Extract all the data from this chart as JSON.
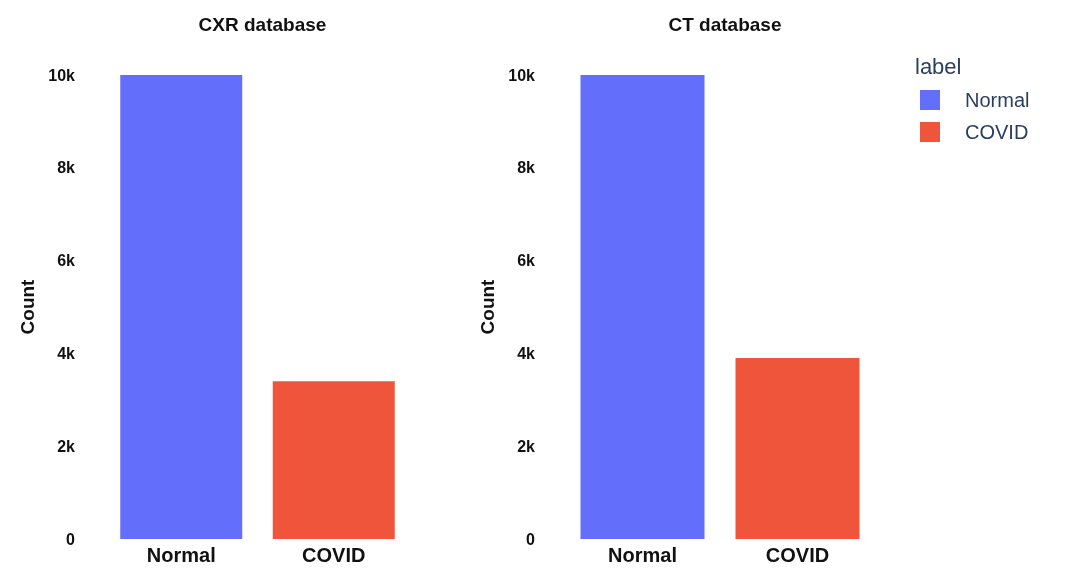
{
  "chart_data": [
    {
      "type": "bar",
      "title": "CXR database",
      "ylabel": "Count",
      "categories": [
        "Normal",
        "COVID"
      ],
      "values": [
        10000,
        3400
      ],
      "colors": [
        "#636efa",
        "#ef553b"
      ],
      "ylim": [
        0,
        10000
      ],
      "yticks": [
        {
          "value": 0,
          "label": "0"
        },
        {
          "value": 2000,
          "label": "2k"
        },
        {
          "value": 4000,
          "label": "4k"
        },
        {
          "value": 6000,
          "label": "6k"
        },
        {
          "value": 8000,
          "label": "8k"
        },
        {
          "value": 10000,
          "label": "10k"
        }
      ],
      "grid": false,
      "legend": false
    },
    {
      "type": "bar",
      "title": "CT database",
      "ylabel": "Count",
      "legend_title": "label",
      "categories": [
        "Normal",
        "COVID"
      ],
      "stacked": true,
      "series": [
        {
          "name": "Normal",
          "color": "#636efa",
          "values": [
            10000,
            null
          ]
        },
        {
          "name": "COVID",
          "color": "#ef553b",
          "values": [
            null,
            3900
          ]
        }
      ],
      "ylim": [
        0,
        10000
      ],
      "yticks": [
        {
          "value": 0,
          "label": "0"
        },
        {
          "value": 2000,
          "label": "2k"
        },
        {
          "value": 4000,
          "label": "4k"
        },
        {
          "value": 6000,
          "label": "6k"
        },
        {
          "value": 8000,
          "label": "8k"
        },
        {
          "value": 10000,
          "label": "10k"
        }
      ],
      "grid": false,
      "legend": "top right"
    }
  ]
}
